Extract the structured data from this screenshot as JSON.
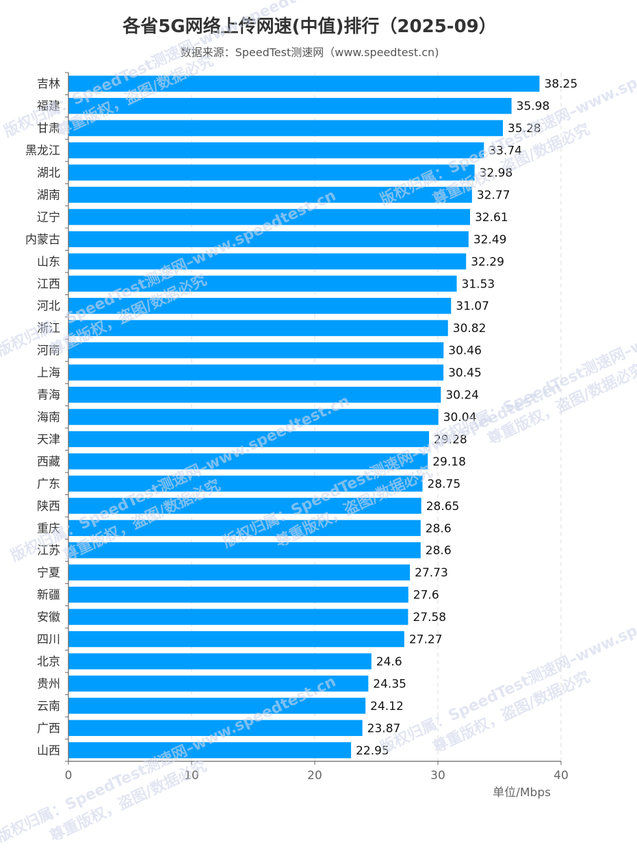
{
  "title": "各省5G网络上传网速(中值)排行（2025-09）",
  "subtitle": "数据来源：SpeedTest测速网（www.speedtest.cn)",
  "watermark": {
    "line1": "版权归属：SpeedTest测速网–www.speedtest.cn",
    "line2": "尊重版权，盗图/数据必究"
  },
  "colors": {
    "bar": "#009dff",
    "grid": "#dddddd",
    "axis": "#666666"
  },
  "chart_data": {
    "type": "bar",
    "orientation": "horizontal",
    "title": "各省5G网络上传网速(中值)排行（2025-09）",
    "subtitle": "数据来源：SpeedTest测速网（www.speedtest.cn)",
    "xlabel": "单位/Mbps",
    "ylabel": "",
    "xlim": [
      0,
      40
    ],
    "xticks": [
      0,
      10,
      20,
      30,
      40
    ],
    "grid": "vertical dashed",
    "categories": [
      "吉林",
      "福建",
      "甘肃",
      "黑龙江",
      "湖北",
      "湖南",
      "辽宁",
      "内蒙古",
      "山东",
      "江西",
      "河北",
      "浙江",
      "河南",
      "上海",
      "青海",
      "海南",
      "天津",
      "西藏",
      "广东",
      "陕西",
      "重庆",
      "江苏",
      "宁夏",
      "新疆",
      "安徽",
      "四川",
      "北京",
      "贵州",
      "云南",
      "广西",
      "山西"
    ],
    "values": [
      38.25,
      35.98,
      35.28,
      33.74,
      32.98,
      32.77,
      32.61,
      32.49,
      32.29,
      31.53,
      31.07,
      30.82,
      30.46,
      30.45,
      30.24,
      30.04,
      29.28,
      29.18,
      28.75,
      28.65,
      28.6,
      28.6,
      27.73,
      27.6,
      27.58,
      27.27,
      24.6,
      24.35,
      24.12,
      23.87,
      22.95
    ],
    "value_labels": [
      "38.25",
      "35.98",
      "35.28",
      "33.74",
      "32.98",
      "32.77",
      "32.61",
      "32.49",
      "32.29",
      "31.53",
      "31.07",
      "30.82",
      "30.46",
      "30.45",
      "30.24",
      "30.04",
      "29.28",
      "29.18",
      "28.75",
      "28.65",
      "28.6",
      "28.6",
      "27.73",
      "27.6",
      "27.58",
      "27.27",
      "24.6",
      "24.35",
      "24.12",
      "23.87",
      "22.95"
    ]
  }
}
